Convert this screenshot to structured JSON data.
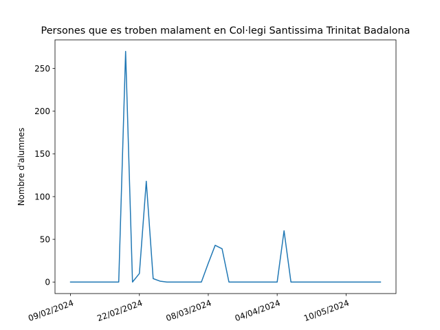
{
  "chart_data": {
    "type": "line",
    "title": "Persones que es troben malament en Col·legi Santissima Trinitat Badalona",
    "xlabel": "",
    "ylabel": "Nombre d'alumnes",
    "color": "#1f77b4",
    "x": [
      0,
      1,
      2,
      3,
      4,
      5,
      6,
      7,
      8,
      9,
      10,
      11,
      12,
      13,
      14,
      15,
      16,
      17,
      18,
      19,
      20,
      21,
      22,
      23,
      24,
      25,
      26,
      27,
      28,
      29,
      30,
      31,
      32,
      33,
      34,
      35,
      36,
      37,
      38,
      39,
      40,
      41,
      42,
      43,
      44,
      45
    ],
    "values": [
      0,
      0,
      0,
      0,
      0,
      0,
      0,
      0,
      270,
      0,
      10,
      118,
      4,
      1,
      0,
      0,
      0,
      0,
      0,
      0,
      22,
      43,
      39,
      0,
      0,
      0,
      0,
      0,
      0,
      0,
      0,
      60,
      0,
      0,
      0,
      0,
      0,
      0,
      0,
      0,
      0,
      0,
      0,
      0,
      0,
      0
    ],
    "xlim": [
      -2.25,
      47.25
    ],
    "ylim": [
      -13.5,
      283.5
    ],
    "yticks": [
      0,
      50,
      100,
      150,
      200,
      250
    ],
    "xticks": [
      {
        "pos": 0,
        "label": "09/02/2024"
      },
      {
        "pos": 10,
        "label": "22/02/2024"
      },
      {
        "pos": 20,
        "label": "08/03/2024"
      },
      {
        "pos": 30,
        "label": "04/04/2024"
      },
      {
        "pos": 40,
        "label": "10/05/2024"
      }
    ],
    "grid": false
  }
}
